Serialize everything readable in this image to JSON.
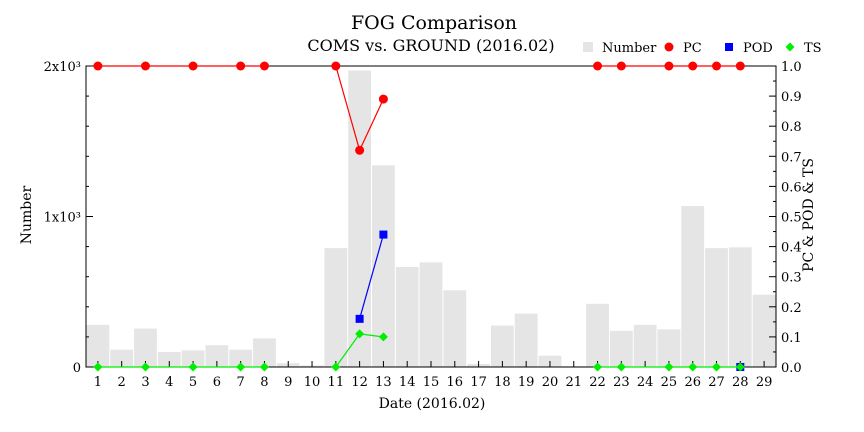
{
  "chart_data": {
    "type": "bar",
    "title": "FOG Comparison",
    "subtitle": "COMS vs. GROUND (2016.02)",
    "xlabel": "Date (2016.02)",
    "ylabel_left": "Number",
    "ylabel_right": "PC & POD & TS",
    "categories": [
      "1",
      "2",
      "3",
      "4",
      "5",
      "6",
      "7",
      "8",
      "9",
      "10",
      "11",
      "12",
      "13",
      "14",
      "15",
      "16",
      "17",
      "18",
      "19",
      "20",
      "21",
      "22",
      "23",
      "24",
      "25",
      "26",
      "27",
      "28",
      "29"
    ],
    "left_axis": {
      "min": 0,
      "max": 2000,
      "ticks": [
        0,
        1000,
        2000
      ],
      "tick_labels": [
        "0",
        "1x10³",
        "2x10³"
      ]
    },
    "right_axis": {
      "min": 0,
      "max": 1,
      "ticks": [
        0,
        0.1,
        0.2,
        0.3,
        0.4,
        0.5,
        0.6,
        0.7,
        0.8,
        0.9,
        1.0
      ],
      "tick_labels": [
        "0.0",
        "0.1",
        "0.2",
        "0.3",
        "0.4",
        "0.5",
        "0.6",
        "0.7",
        "0.8",
        "0.9",
        "1.0"
      ]
    },
    "legend_position": "top-right",
    "series": [
      {
        "name": "Number",
        "kind": "bar",
        "axis": "left",
        "color": "#e5e5e5",
        "values": [
          280,
          115,
          255,
          100,
          110,
          145,
          115,
          190,
          25,
          10,
          790,
          1970,
          1340,
          665,
          695,
          510,
          20,
          275,
          355,
          75,
          5,
          420,
          240,
          280,
          250,
          1070,
          790,
          795,
          480
        ]
      },
      {
        "name": "PC",
        "kind": "line",
        "axis": "right",
        "color": "#ff0000",
        "marker": "circle",
        "points": [
          [
            1,
            1.0
          ],
          [
            3,
            1.0
          ],
          [
            5,
            1.0
          ],
          [
            7,
            1.0
          ],
          [
            8,
            1.0
          ],
          [
            11,
            1.0
          ],
          [
            12,
            0.72
          ],
          [
            13,
            0.89
          ],
          [
            22,
            1.0
          ],
          [
            23,
            1.0
          ],
          [
            25,
            1.0
          ],
          [
            26,
            1.0
          ],
          [
            27,
            1.0
          ],
          [
            28,
            1.0
          ]
        ]
      },
      {
        "name": "POD",
        "kind": "line",
        "axis": "right",
        "color": "#0000ff",
        "marker": "square",
        "points": [
          [
            12,
            0.16
          ],
          [
            13,
            0.44
          ],
          [
            28,
            0.0
          ]
        ]
      },
      {
        "name": "TS",
        "kind": "line",
        "axis": "right",
        "color": "#00ee00",
        "marker": "diamond",
        "points": [
          [
            1,
            0.0
          ],
          [
            3,
            0.0
          ],
          [
            5,
            0.0
          ],
          [
            7,
            0.0
          ],
          [
            8,
            0.0
          ],
          [
            11,
            0.0
          ],
          [
            12,
            0.11
          ],
          [
            13,
            0.1
          ],
          [
            22,
            0.0
          ],
          [
            23,
            0.0
          ],
          [
            25,
            0.0
          ],
          [
            26,
            0.0
          ],
          [
            27,
            0.0
          ],
          [
            28,
            0.0
          ]
        ]
      }
    ]
  }
}
